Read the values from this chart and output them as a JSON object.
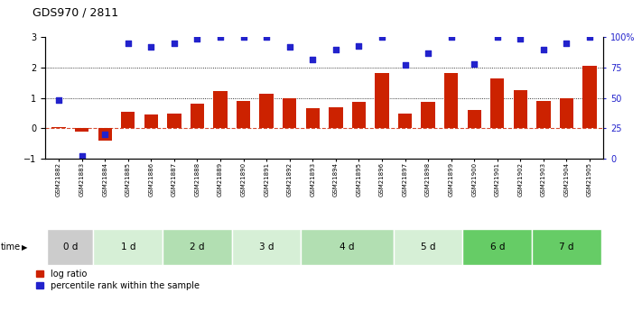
{
  "title": "GDS970 / 2811",
  "samples": [
    "GSM21882",
    "GSM21883",
    "GSM21884",
    "GSM21885",
    "GSM21886",
    "GSM21887",
    "GSM21888",
    "GSM21889",
    "GSM21890",
    "GSM21891",
    "GSM21892",
    "GSM21893",
    "GSM21894",
    "GSM21895",
    "GSM21896",
    "GSM21897",
    "GSM21898",
    "GSM21899",
    "GSM21900",
    "GSM21901",
    "GSM21902",
    "GSM21903",
    "GSM21904",
    "GSM21905"
  ],
  "log_ratio": [
    0.05,
    -0.1,
    -0.42,
    0.55,
    0.47,
    0.48,
    0.8,
    1.22,
    0.9,
    1.15,
    1.0,
    0.65,
    0.7,
    0.88,
    1.83,
    0.48,
    0.88,
    1.82,
    0.6,
    1.65,
    1.25,
    0.9,
    1.0,
    2.05
  ],
  "percentile_pct": [
    48,
    2,
    20,
    95,
    92,
    95,
    99,
    100,
    100,
    100,
    92,
    82,
    90,
    93,
    100,
    77,
    87,
    100,
    78,
    100,
    99,
    90,
    95,
    100
  ],
  "time_groups": [
    {
      "label": "0 d",
      "start": 0,
      "end": 2,
      "color": "#cccccc"
    },
    {
      "label": "1 d",
      "start": 2,
      "end": 5,
      "color": "#d6efd6"
    },
    {
      "label": "2 d",
      "start": 5,
      "end": 8,
      "color": "#b2dfb2"
    },
    {
      "label": "3 d",
      "start": 8,
      "end": 11,
      "color": "#d6efd6"
    },
    {
      "label": "4 d",
      "start": 11,
      "end": 15,
      "color": "#b2dfb2"
    },
    {
      "label": "5 d",
      "start": 15,
      "end": 18,
      "color": "#d6efd6"
    },
    {
      "label": "6 d",
      "start": 18,
      "end": 21,
      "color": "#66cc66"
    },
    {
      "label": "7 d",
      "start": 21,
      "end": 24,
      "color": "#66cc66"
    }
  ],
  "bar_color": "#cc2200",
  "dot_color": "#2222cc",
  "ylim_left": [
    -1,
    3
  ],
  "ylim_right": [
    0,
    100
  ],
  "yticks_left": [
    -1,
    0,
    1,
    2,
    3
  ],
  "yticks_right": [
    0,
    25,
    50,
    75,
    100
  ],
  "legend_labels": [
    "log ratio",
    "percentile rank within the sample"
  ],
  "legend_colors": [
    "#cc2200",
    "#2222cc"
  ],
  "fig_width": 7.11,
  "fig_height": 3.45,
  "dpi": 100
}
